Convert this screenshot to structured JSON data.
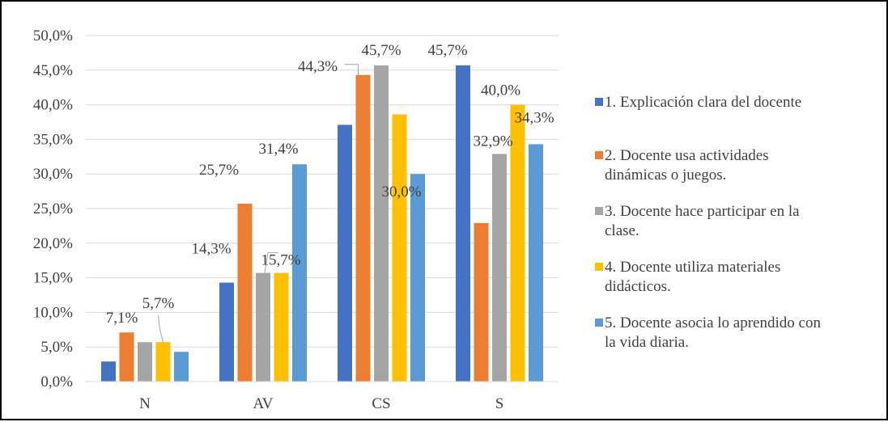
{
  "chart_data": {
    "type": "bar",
    "title": "",
    "xlabel": "",
    "ylabel": "",
    "categories": [
      "N",
      "AV",
      "CS",
      "S"
    ],
    "ylim": [
      0,
      50
    ],
    "y_ticks": [
      "0,0%",
      "5,0%",
      "10,0%",
      "15,0%",
      "20,0%",
      "25,0%",
      "30,0%",
      "35,0%",
      "40,0%",
      "45,0%",
      "50,0%"
    ],
    "grid": true,
    "legend_position": "right",
    "series": [
      {
        "name": "1. Explicación clara del docente",
        "color": "#4472C4",
        "values": [
          2.9,
          14.3,
          37.1,
          45.7
        ],
        "labels": [
          "",
          "14,3%",
          "",
          "45,7%"
        ]
      },
      {
        "name": "2. Docente usa actividades dinámicas o juegos.",
        "color": "#ED7D31",
        "values": [
          7.1,
          25.7,
          44.3,
          22.9
        ],
        "labels": [
          "7,1%",
          "25,7%",
          "44,3%",
          ""
        ]
      },
      {
        "name": "3. Docente hace participar en la clase.",
        "color": "#A5A5A5",
        "values": [
          5.7,
          15.7,
          45.7,
          32.9
        ],
        "labels": [
          "",
          "15,7%",
          "45,7%",
          "32,9%"
        ]
      },
      {
        "name": "4. Docente utiliza materiales didácticos.",
        "color": "#FFC000",
        "values": [
          5.7,
          15.7,
          38.6,
          40.0
        ],
        "labels": [
          "5,7%",
          "",
          "",
          "40,0%"
        ]
      },
      {
        "name": "5. Docente asocia lo aprendido con la vida diaria.",
        "color": "#5B9BD5",
        "values": [
          4.3,
          31.4,
          30.0,
          34.3
        ],
        "labels": [
          "",
          "31,4%",
          "30,0%",
          "34,3%"
        ]
      }
    ]
  }
}
